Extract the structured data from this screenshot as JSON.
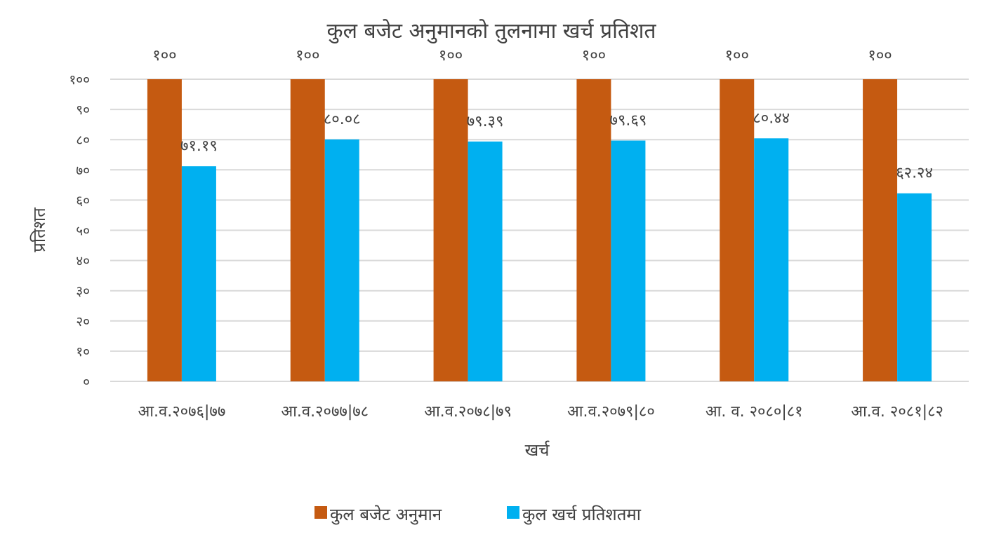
{
  "chart_data": {
    "type": "bar",
    "title": "कुल बजेट अनुमानको तुलनामा खर्च प्रतिशत",
    "xlabel": "खर्च",
    "ylabel": "प्रतिशत",
    "ylim": [
      0,
      100
    ],
    "ytick_values": [
      0,
      10,
      20,
      30,
      40,
      50,
      60,
      70,
      80,
      90,
      100
    ],
    "ytick_labels": [
      "०",
      "१०",
      "२०",
      "३०",
      "४०",
      "५०",
      "६०",
      "७०",
      "८०",
      "९०",
      "१००"
    ],
    "categories": [
      "आ.व.२०७६|७७",
      "आ.व.२०७७|७८",
      "आ.व.२०७८|७९",
      "आ.व.२०७९|८०",
      "आ. व. २०८०|८१",
      "आ.व. २०८१|८२"
    ],
    "grid": true,
    "legend_position": "bottom",
    "series": [
      {
        "name": "कुल बजेट अनुमान",
        "color": "#c55a11",
        "values": [
          100,
          100,
          100,
          100,
          100,
          100
        ],
        "labels": [
          "१००",
          "१००",
          "१००",
          "१००",
          "१००",
          "१००"
        ]
      },
      {
        "name": "कुल खर्च प्रतिशतमा",
        "color": "#00b0f0",
        "values": [
          71.19,
          80.08,
          79.39,
          79.69,
          80.44,
          62.24
        ],
        "labels": [
          "७१.१९",
          "८०.०८",
          "७९.३९",
          "७९.६९",
          "८०.४४",
          "६२.२४"
        ]
      }
    ]
  }
}
